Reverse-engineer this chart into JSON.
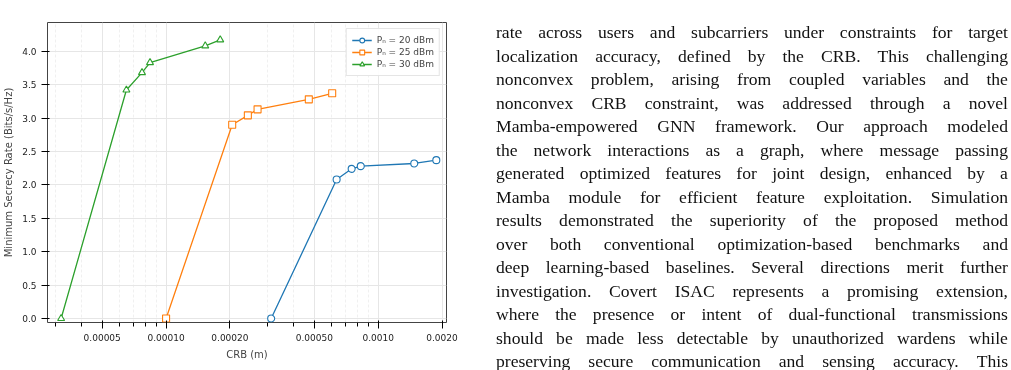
{
  "chart_data": {
    "type": "line",
    "xlabel": "CRB (m)",
    "ylabel": "Minimum Secrecy Rate (Bits/s/Hz)",
    "log": "x",
    "grid": true,
    "legend": "top right",
    "line_style": "solid",
    "xlim": [
      2.76e-05,
      0.0021
    ],
    "ylim": [
      -0.06,
      4.43
    ],
    "xticks": [
      {
        "value": 5e-05,
        "label": "0.00005"
      },
      {
        "value": 0.0001,
        "label": "0.00010"
      },
      {
        "value": 0.0002,
        "label": "0.00020"
      },
      {
        "value": 0.0005,
        "label": "0.00050"
      },
      {
        "value": 0.001,
        "label": "0.0010"
      },
      {
        "value": 0.002,
        "label": "0.0020"
      }
    ],
    "yticks": [
      {
        "value": 0,
        "label": "0.0"
      },
      {
        "value": 0.5,
        "label": "0.5"
      },
      {
        "value": 1,
        "label": "1.0"
      },
      {
        "value": 1.5,
        "label": "1.5"
      },
      {
        "value": 2,
        "label": "2.0"
      },
      {
        "value": 2.5,
        "label": "2.5"
      },
      {
        "value": 3,
        "label": "3.0"
      },
      {
        "value": 3.5,
        "label": "3.5"
      },
      {
        "value": 4,
        "label": "4.0"
      }
    ],
    "series": [
      {
        "name": "Pₙ = 20 dBm",
        "color": "#1f77b4",
        "marker": "circle",
        "x": [
          0.000313,
          0.000637,
          0.00075,
          0.000828,
          0.00148,
          0.00188
        ],
        "values": [
          0,
          2.08,
          2.24,
          2.28,
          2.32,
          2.37
        ]
      },
      {
        "name": "Pₙ = 25 dBm",
        "color": "#ff7f0e",
        "marker": "square",
        "x": [
          0.0001,
          0.000205,
          0.000243,
          0.00027,
          0.000471,
          0.000607
        ],
        "values": [
          0,
          2.9,
          3.04,
          3.13,
          3.28,
          3.37
        ]
      },
      {
        "name": "Pₙ = 30 dBm",
        "color": "#2ca02c",
        "marker": "triangle",
        "x": [
          3.2e-05,
          6.5e-05,
          7.7e-05,
          8.4e-05,
          0.000153,
          0.00018
        ],
        "values": [
          0,
          3.42,
          3.68,
          3.83,
          4.08,
          4.17
        ]
      }
    ],
    "annotations": [
      "rate across users and subcarriers under constraints for target",
      "localization accuracy, defined by the CRB. This challenging",
      "nonconvex problem, arising from coupled variables and the",
      "nonconvex CRB constraint, was addressed through a novel",
      "Mamba-empowered GNN framework. Our approach modeled",
      "the network interactions as a graph, where message passing",
      "generated optimized features for joint design, enhanced by a",
      "Mamba module for efficient feature exploitation. Simulation",
      "results demonstrated the superiority of the proposed method",
      "over both conventional optimization-based benchmarks and",
      "deep learning-based baselines. Several directions merit further",
      "investigation. Covert ISAC represents a promising extension,",
      "where the presence or intent of dual-functional transmissions",
      "should be made less detectable by unauthorized wardens while",
      "preserving secure communication and sensing accuracy. This"
    ]
  }
}
